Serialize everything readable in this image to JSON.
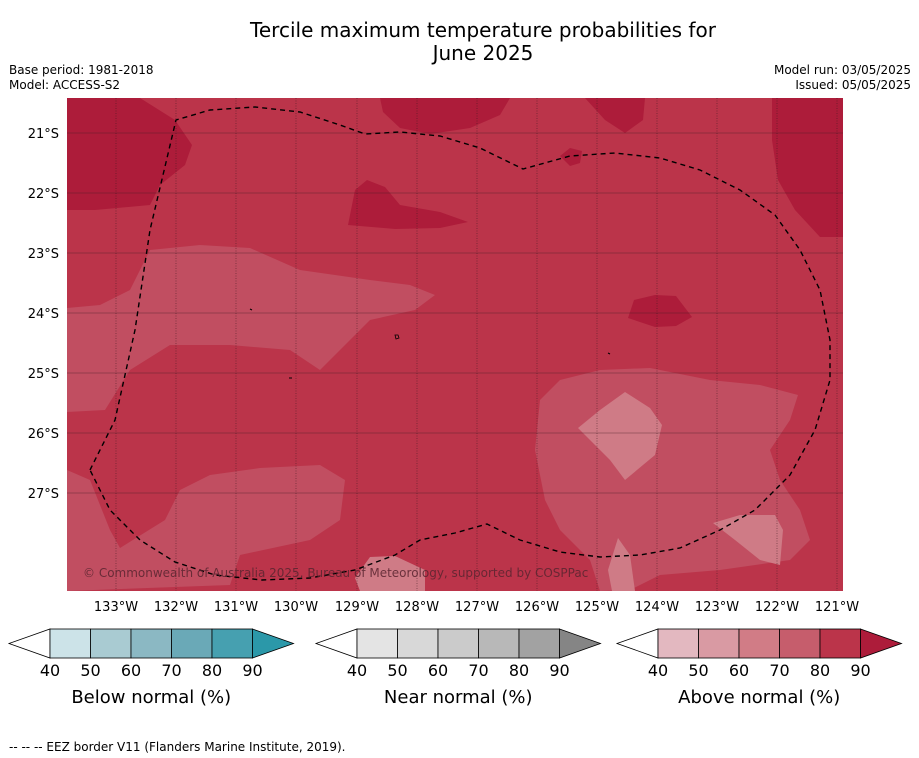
{
  "title_line1": "Tercile maximum temperature probabilities for",
  "title_line2": "June 2025",
  "base_period": "Base period: 1981-2018",
  "model": "Model: ACCESS-S2",
  "model_run": "Model run: 03/05/2025",
  "issued": "Issued: 05/05/2025",
  "copyright": "© Commonwealth of Australia 2025, Bureau of Meteorology, supported by COSPPac",
  "footer": "--  --  -- EEZ border V11 (Flanders Marine Institute, 2019).",
  "chart_data": {
    "type": "heatmap",
    "x_ticks": [
      "133°W",
      "132°W",
      "131°W",
      "130°W",
      "129°W",
      "128°W",
      "127°W",
      "126°W",
      "125°W",
      "124°W",
      "123°W",
      "122°W",
      "121°W"
    ],
    "y_ticks": [
      "21°S",
      "22°S",
      "23°S",
      "24°S",
      "25°S",
      "26°S",
      "27°S"
    ],
    "xlim": [
      -133.8,
      -120.9
    ],
    "ylim": [
      -28.9,
      -20.6
    ],
    "grid": true,
    "legends": [
      {
        "label": "Below normal (%)",
        "ticks": [
          "40",
          "50",
          "60",
          "70",
          "80",
          "90"
        ],
        "colors": [
          "#cce3e8",
          "#a9cbd2",
          "#8bb8c3",
          "#6aa9b7",
          "#46a0b0",
          "#2b98a9"
        ]
      },
      {
        "label": "Near normal (%)",
        "ticks": [
          "40",
          "50",
          "60",
          "70",
          "80",
          "90"
        ],
        "colors": [
          "#e4e4e4",
          "#d8d8d8",
          "#cbcbcb",
          "#b8b8b8",
          "#a2a2a2",
          "#858585"
        ]
      },
      {
        "label": "Above normal (%)",
        "ticks": [
          "40",
          "50",
          "60",
          "70",
          "80",
          "90"
        ],
        "colors": [
          "#e3b8c0",
          "#d99aa3",
          "#d17c86",
          "#c65d6c",
          "#bb344a",
          "#ad1c3a"
        ]
      }
    ],
    "field_colors": {
      "above_80_90": "#bb344a",
      "above_90_plus": "#ad1c3a",
      "above_70_80": "#c65d6c",
      "above_60_70": "#cf7b86"
    }
  }
}
